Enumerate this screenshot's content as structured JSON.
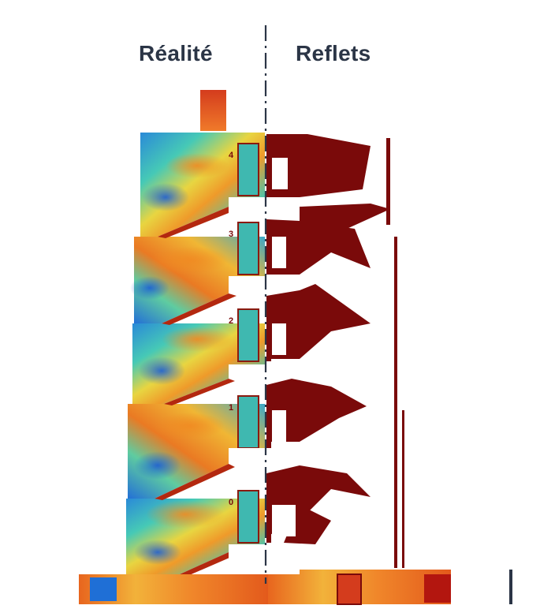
{
  "labels": {
    "left": "Réalité",
    "right": "Reflets"
  },
  "floor_numbers": [
    "4",
    "3",
    "2",
    "1",
    "0"
  ],
  "colors": {
    "divider": "#2b3546",
    "reflection": "#7a0a0a",
    "heat_low": "#1e6fd9",
    "heat_mid": "#36c7b8",
    "heat_yellow": "#f2d23a",
    "heat_high": "#e8651e",
    "heat_max": "#b3160f"
  }
}
